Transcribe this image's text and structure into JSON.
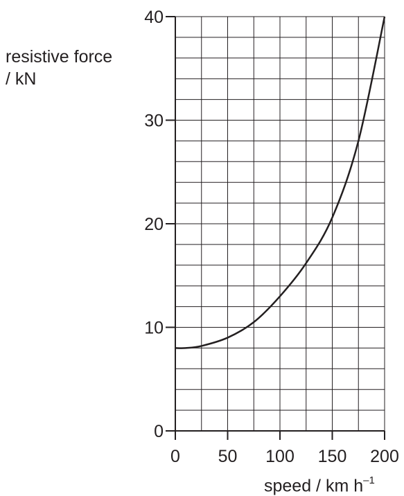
{
  "chart_data": {
    "type": "line",
    "title": "",
    "ylabel_lines": [
      "resistive force",
      "/ kN"
    ],
    "xlabel": {
      "base": "speed / km h",
      "superscript": "–1"
    },
    "xlim": [
      0,
      200
    ],
    "ylim": [
      0,
      40
    ],
    "x_ticks": [
      0,
      50,
      100,
      150,
      200
    ],
    "x_tick_labels": [
      "0",
      "50",
      "100",
      "150",
      "200"
    ],
    "y_ticks": [
      0,
      10,
      20,
      30,
      40
    ],
    "y_tick_labels": [
      "0",
      "10",
      "20",
      "30",
      "40"
    ],
    "grid": true,
    "grid_x_step": 25,
    "grid_y_step": 2,
    "series": [
      {
        "x": [
          0,
          10,
          25,
          50,
          75,
          100,
          125,
          150,
          175,
          200
        ],
        "y": [
          8.0,
          8.0,
          8.2,
          9.0,
          10.5,
          13.0,
          16.2,
          20.6,
          28.0,
          40.0
        ],
        "color": "#231f20"
      }
    ]
  }
}
